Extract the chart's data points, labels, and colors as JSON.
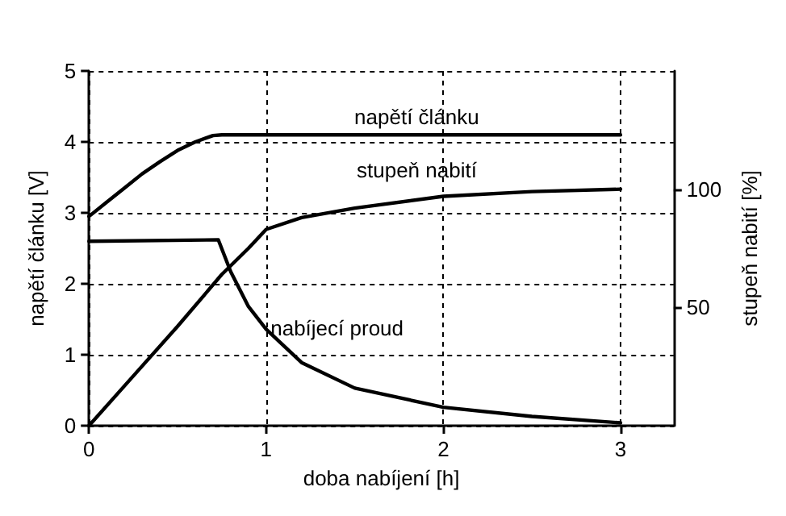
{
  "chart_data": {
    "type": "line",
    "xlabel": "doba nabíjení [h]",
    "ylabel": "napětí článku [V]",
    "y2label": "stupeň nabití [%]",
    "xlim": [
      0,
      3.3
    ],
    "xticks": [
      0,
      1,
      2,
      3
    ],
    "ylim": [
      0,
      5
    ],
    "yticks": [
      0,
      1,
      2,
      3,
      4,
      5
    ],
    "y2lim": [
      0,
      150
    ],
    "y2ticks": [
      50,
      100
    ],
    "grid": true,
    "marker": "none",
    "line_style": "solid",
    "series": [
      {
        "name": "napětí článku",
        "color": "#000000",
        "x": [
          0,
          0.1,
          0.2,
          0.3,
          0.4,
          0.5,
          0.6,
          0.7,
          0.75,
          3
        ],
        "values": [
          2.95,
          3.15,
          3.35,
          3.55,
          3.72,
          3.88,
          4.0,
          4.09,
          4.1,
          4.1
        ]
      },
      {
        "name": "stupeň nabití",
        "color": "#000000",
        "axis": "y2",
        "x": [
          0,
          0.25,
          0.5,
          0.75,
          0.9,
          1,
          1.2,
          1.5,
          2,
          2.5,
          3
        ],
        "values": [
          0,
          21,
          42,
          64,
          75,
          83,
          88,
          92,
          97,
          99,
          100
        ]
      },
      {
        "name": "nabíjecí proud",
        "color": "#000000",
        "x": [
          0,
          0.73,
          0.8,
          0.9,
          1,
          1.2,
          1.5,
          2,
          2.5,
          3
        ],
        "values": [
          2.6,
          2.62,
          2.17,
          1.68,
          1.36,
          0.89,
          0.53,
          0.26,
          0.13,
          0.04
        ]
      }
    ]
  }
}
